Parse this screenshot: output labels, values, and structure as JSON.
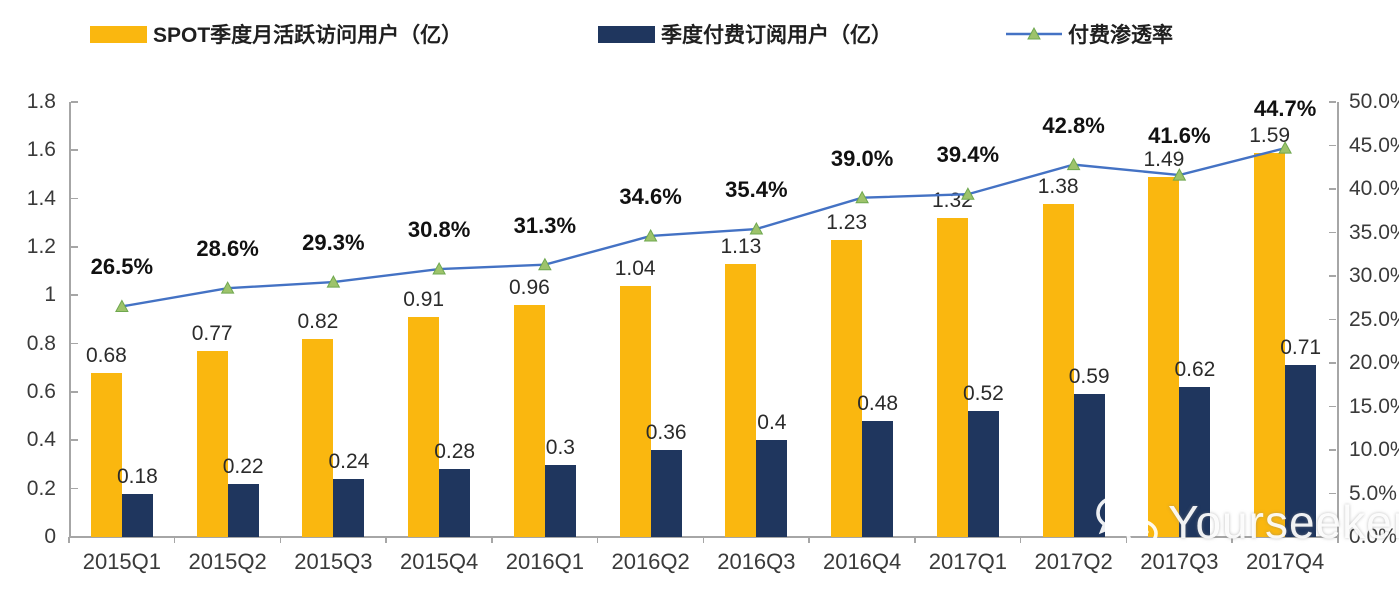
{
  "watermark": {
    "text": "Yourseeker"
  },
  "chart_data": {
    "type": "bar+line combo",
    "title": "",
    "grid": false,
    "legend_position": "top",
    "categories": [
      "2015Q1",
      "2015Q2",
      "2015Q3",
      "2015Q4",
      "2016Q1",
      "2016Q2",
      "2016Q3",
      "2016Q4",
      "2017Q1",
      "2017Q2",
      "2017Q3",
      "2017Q4"
    ],
    "series": [
      {
        "name": "SPOT季度月活跃访问用户（亿）",
        "type": "bar",
        "axis": "left",
        "color": "#FAB70F",
        "values": [
          0.68,
          0.77,
          0.82,
          0.91,
          0.96,
          1.04,
          1.13,
          1.23,
          1.32,
          1.38,
          1.49,
          1.59
        ],
        "labels": [
          "0.68",
          "0.77",
          "0.82",
          "0.91",
          "0.96",
          "1.04",
          "1.13",
          "1.23",
          "1.32",
          "1.38",
          "1.49",
          "1.59"
        ]
      },
      {
        "name": "季度付费订阅用户（亿）",
        "type": "bar",
        "axis": "left",
        "color": "#1F365E",
        "values": [
          0.18,
          0.22,
          0.24,
          0.28,
          0.3,
          0.36,
          0.4,
          0.48,
          0.52,
          0.59,
          0.62,
          0.71
        ],
        "labels": [
          "0.18",
          "0.22",
          "0.24",
          "0.28",
          "0.3",
          "0.36",
          "0.4",
          "0.48",
          "0.52",
          "0.59",
          "0.62",
          "0.71"
        ]
      },
      {
        "name": "付费渗透率",
        "type": "line",
        "axis": "right",
        "color": "#4472C4",
        "marker": {
          "shape": "triangle",
          "fill": "#9DC36B",
          "stroke": "#6FA84F"
        },
        "values": [
          26.5,
          28.6,
          29.3,
          30.8,
          31.3,
          34.6,
          35.4,
          39.0,
          39.4,
          42.8,
          41.6,
          44.7
        ],
        "labels": [
          "26.5%",
          "28.6%",
          "29.3%",
          "30.8%",
          "31.3%",
          "34.6%",
          "35.4%",
          "39.0%",
          "39.4%",
          "42.8%",
          "41.6%",
          "44.7%"
        ]
      }
    ],
    "left_axis": {
      "min": 0,
      "max": 1.8,
      "step": 0.2,
      "ticks": [
        "0",
        "0.2",
        "0.4",
        "0.6",
        "0.8",
        "1",
        "1.2",
        "1.4",
        "1.6",
        "1.8"
      ]
    },
    "right_axis": {
      "min": 0,
      "max": 50,
      "step": 5,
      "ticks": [
        "0.0%",
        "5.0%",
        "10.0%",
        "15.0%",
        "20.0%",
        "25.0%",
        "30.0%",
        "35.0%",
        "40.0%",
        "45.0%",
        "50.0%"
      ]
    },
    "colors": {
      "axis": "#a6a6a6",
      "label_text": "#2b2b2b",
      "pct_text": "#111111"
    }
  }
}
